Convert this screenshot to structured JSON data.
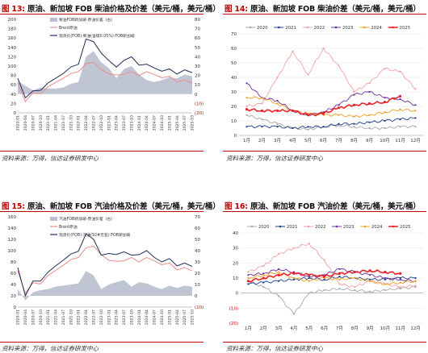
{
  "figures": [
    {
      "num": "图 13:",
      "title": "原油、新加坡 FOB 柴油价格及价差（美元/桶，美元/桶）",
      "source": "资料来源：万得，信达证券研发中心"
    },
    {
      "num": "图 14:",
      "title": "原油、新加坡 FOB 柴油价差（美元/桶，美元/桶）",
      "source": "资料来源：万得，信达证券研发中心"
    },
    {
      "num": "图 15:",
      "title": "原油、新加坡 FOB 汽油价格及价差（美元/桶，美元/桶）",
      "source": "资料来源：万得，信达证券研发中心"
    },
    {
      "num": "图 16:",
      "title": "原油、新加坡 FOB 汽油价差（美元/桶，美元/桶）",
      "source": "资料来源：万得，信达证券研发中心"
    }
  ],
  "colors": {
    "spread_fill": "#b9bfcf",
    "brent": "#f08a8a",
    "product": "#1f2d5a",
    "y2020": "#a9a9a9",
    "y2021": "#1f3e8c",
    "y2022": "#f4a3a3",
    "y2023": "#7030a0",
    "y2024": "#f0a020",
    "y2025": "#e8262a",
    "neg_label": "#e00000"
  },
  "chart_data": [
    {
      "type": "area",
      "legend": [
        "柴油FOB新加坡-原油价差（右）",
        "Brent原油",
        "现货价(FOB):柴油(含硫0.05%):FOB新加坡"
      ],
      "x": [
        "2020-01",
        "2020-04",
        "2020-07",
        "2020-10",
        "2021-01",
        "2021-04",
        "2021-07",
        "2021-10",
        "2022-01",
        "2022-04",
        "2022-07",
        "2022-10",
        "2023-01",
        "2023-04",
        "2023-07",
        "2023-10",
        "2024-01",
        "2024-04",
        "2024-07",
        "2024-10",
        "2025-01",
        "2025-04",
        "2025-07",
        "2025-10"
      ],
      "left_ylim": [
        0,
        200
      ],
      "left_ticks": [
        "0",
        "20",
        "40",
        "60",
        "80",
        "100",
        "120",
        "140",
        "160",
        "180",
        "200"
      ],
      "right_ylim": [
        -20,
        80
      ],
      "right_ticks": [
        "(20)",
        "(10)",
        "0",
        "10",
        "20",
        "30",
        "40",
        "50",
        "60",
        "70",
        "80"
      ],
      "series": [
        {
          "name": "柴油FOB新加坡-原油价差（右）",
          "axis": "right",
          "values": [
            14,
            9,
            4,
            7,
            6,
            6,
            7,
            11,
            13,
            40,
            46,
            34,
            28,
            17,
            27,
            30,
            21,
            15,
            13,
            15,
            18,
            17,
            21,
            19
          ]
        },
        {
          "name": "Brent原油",
          "axis": "left",
          "values": [
            64,
            24,
            43,
            41,
            56,
            65,
            74,
            84,
            88,
            105,
            108,
            93,
            83,
            81,
            82,
            88,
            80,
            88,
            82,
            75,
            78,
            66,
            70,
            64
          ]
        },
        {
          "name": "现货价(FOB):柴油(含硫0.05%):FOB新加坡",
          "axis": "left",
          "values": [
            74,
            32,
            47,
            48,
            64,
            74,
            84,
            98,
            104,
            158,
            152,
            128,
            112,
            98,
            112,
            120,
            102,
            104,
            96,
            89,
            94,
            83,
            92,
            86
          ]
        }
      ]
    },
    {
      "type": "line",
      "legend": [
        "2020",
        "2021",
        "2022",
        "2023",
        "2024",
        "2025"
      ],
      "categories": [
        "1月",
        "2月",
        "3月",
        "4月",
        "5月",
        "6月",
        "7月",
        "8月",
        "9月",
        "10月",
        "11月",
        "12月"
      ],
      "ylim": [
        0,
        70
      ],
      "yticks": [
        "0",
        "10",
        "20",
        "30",
        "40",
        "50",
        "60",
        "70"
      ],
      "series": [
        {
          "name": "2020",
          "values": [
            14,
            11,
            8,
            5,
            4,
            6,
            7,
            6,
            5,
            5,
            6,
            6
          ]
        },
        {
          "name": "2021",
          "values": [
            6,
            6,
            6,
            5,
            6,
            6,
            8,
            8,
            9,
            10,
            11,
            12
          ]
        },
        {
          "name": "2022",
          "values": [
            20,
            22,
            40,
            58,
            42,
            60,
            48,
            30,
            36,
            46,
            44,
            32
          ]
        },
        {
          "name": "2023",
          "values": [
            36,
            26,
            24,
            17,
            14,
            16,
            21,
            28,
            30,
            26,
            25,
            21
          ]
        },
        {
          "name": "2024",
          "values": [
            26,
            26,
            22,
            17,
            15,
            14,
            14,
            13,
            14,
            16,
            18,
            17
          ]
        },
        {
          "name": "2025",
          "values": [
            18,
            17,
            17,
            17,
            14,
            15,
            19,
            21,
            22,
            23,
            27,
            null
          ]
        }
      ]
    },
    {
      "type": "area",
      "legend": [
        "汽油FOB新加坡-原油价差（右）",
        "Brent原油",
        "现货价(FOB):汽油(92#无铅):FOB新加坡"
      ],
      "x": [
        "2020-01",
        "2020-04",
        "2020-07",
        "2020-10",
        "2021-01",
        "2021-04",
        "2021-07",
        "2021-10",
        "2022-01",
        "2022-04",
        "2022-07",
        "2022-10",
        "2023-01",
        "2023-04",
        "2023-07",
        "2023-10",
        "2024-01",
        "2024-04",
        "2024-07",
        "2024-10",
        "2025-01",
        "2025-04",
        "2025-07",
        "2025-10"
      ],
      "left_ylim": [
        0,
        160
      ],
      "left_ticks": [
        "0",
        "20",
        "40",
        "60",
        "80",
        "100",
        "120",
        "140",
        "160"
      ],
      "right_ylim": [
        -10,
        70
      ],
      "right_ticks": [
        "(10)",
        "0",
        "10",
        "20",
        "30",
        "40",
        "50",
        "60",
        "70"
      ],
      "series": [
        {
          "name": "汽油FOB新加坡-原油价差（右）",
          "axis": "right",
          "values": [
            6,
            -4,
            3,
            5,
            6,
            8,
            9,
            10,
            11,
            22,
            18,
            6,
            10,
            12,
            14,
            8,
            12,
            11,
            8,
            6,
            9,
            7,
            9,
            8
          ]
        },
        {
          "name": "Brent原油",
          "axis": "left",
          "values": [
            64,
            24,
            43,
            41,
            56,
            65,
            74,
            84,
            88,
            105,
            108,
            93,
            83,
            81,
            82,
            88,
            80,
            88,
            82,
            75,
            78,
            66,
            70,
            64
          ]
        },
        {
          "name": "现货价(FOB):汽油(92#无铅):FOB新加坡",
          "axis": "left",
          "values": [
            70,
            20,
            46,
            46,
            62,
            73,
            83,
            94,
            99,
            130,
            120,
            92,
            95,
            93,
            98,
            92,
            93,
            100,
            88,
            80,
            86,
            73,
            78,
            72
          ]
        }
      ]
    },
    {
      "type": "line",
      "legend": [
        "2020",
        "2021",
        "2022",
        "2023",
        "2024",
        "2025"
      ],
      "categories": [
        "1月",
        "2月",
        "3月",
        "4月",
        "5月",
        "6月",
        "7月",
        "8月",
        "9月",
        "10月",
        "11月",
        "12月"
      ],
      "ylim": [
        -20,
        40
      ],
      "yticks": [
        "(20)",
        "(10)",
        "0",
        "10",
        "20",
        "30",
        "40"
      ],
      "series": [
        {
          "name": "2020",
          "values": [
            8,
            4,
            -2,
            -14,
            0,
            2,
            3,
            2,
            1,
            2,
            3,
            4
          ]
        },
        {
          "name": "2021",
          "values": [
            6,
            7,
            8,
            9,
            10,
            9,
            11,
            10,
            9,
            9,
            10,
            10
          ]
        },
        {
          "name": "2022",
          "values": [
            14,
            18,
            26,
            30,
            33,
            22,
            6,
            4,
            8,
            6,
            4,
            5
          ]
        },
        {
          "name": "2023",
          "values": [
            12,
            13,
            16,
            14,
            11,
            12,
            16,
            14,
            12,
            10,
            9,
            8
          ]
        },
        {
          "name": "2024",
          "values": [
            10,
            12,
            14,
            10,
            8,
            10,
            9,
            10,
            8,
            6,
            7,
            8
          ]
        },
        {
          "name": "2025",
          "values": [
            8,
            10,
            12,
            13,
            12,
            11,
            13,
            14,
            15,
            14,
            13,
            null
          ]
        }
      ]
    }
  ]
}
